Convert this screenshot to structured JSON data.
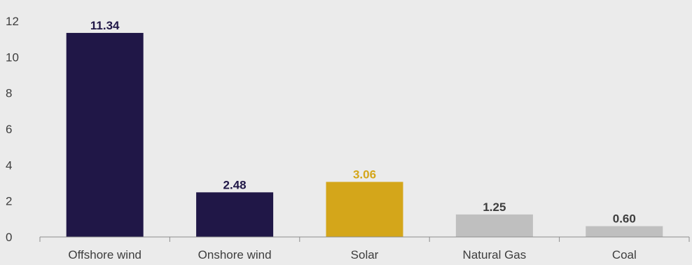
{
  "chart_data": {
    "type": "bar",
    "categories": [
      "Offshore wind",
      "Onshore wind",
      "Solar",
      "Natural Gas",
      "Coal"
    ],
    "values": [
      11.34,
      2.48,
      3.06,
      1.25,
      0.6
    ],
    "value_labels": [
      "11.34",
      "2.48",
      "3.06",
      "1.25",
      "0.60"
    ],
    "bar_colors": [
      "#201747",
      "#201747",
      "#d4a61a",
      "#bfbfbf",
      "#bfbfbf"
    ],
    "label_colors": [
      "#201747",
      "#201747",
      "#d4a61a",
      "#3d3d3d",
      "#3d3d3d"
    ],
    "y_ticks": [
      0,
      2,
      4,
      6,
      8,
      10,
      12
    ],
    "ylim": [
      0,
      12
    ],
    "title": "",
    "xlabel": "",
    "ylabel": "",
    "grid": false,
    "legend": "none"
  }
}
